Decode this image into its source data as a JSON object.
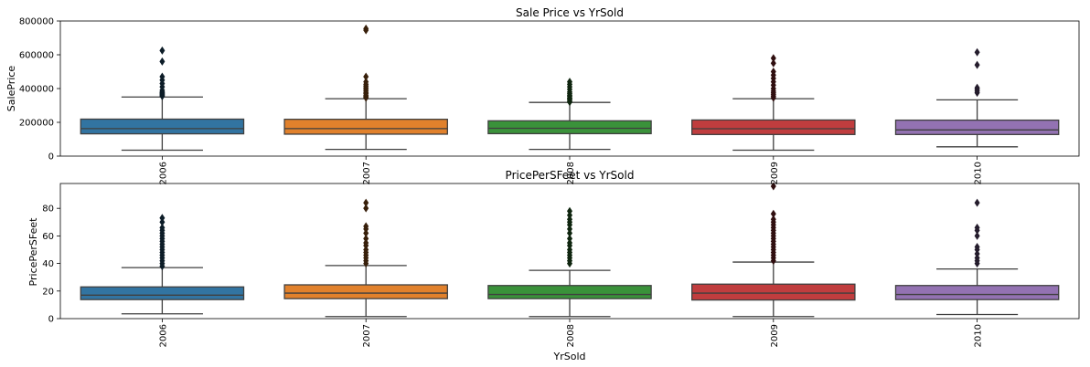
{
  "chart_data": [
    {
      "type": "box",
      "title": "Sale Price vs YrSold",
      "xlabel": "",
      "ylabel": "SalePrice",
      "categories": [
        "2006",
        "2007",
        "2008",
        "2009",
        "2010"
      ],
      "ylim": [
        0,
        800000
      ],
      "yticks": [
        0,
        200000,
        400000,
        600000,
        800000
      ],
      "ytick_labels": [
        "0",
        "200000",
        "400000",
        "600000",
        "800000"
      ],
      "boxes": [
        {
          "category": "2006",
          "whisker_low": 35000,
          "q1": 132000,
          "median": 163000,
          "q3": 219000,
          "whisker_high": 350000,
          "outliers": [
            355000,
            360000,
            365000,
            370000,
            375000,
            380000,
            390000,
            410000,
            430000,
            450000,
            470000,
            560000,
            625000
          ]
        },
        {
          "category": "2007",
          "whisker_low": 40000,
          "q1": 130000,
          "median": 163000,
          "q3": 218000,
          "whisker_high": 340000,
          "outliers": [
            345000,
            350000,
            355000,
            360000,
            370000,
            375000,
            385000,
            395000,
            405000,
            415000,
            425000,
            440000,
            470000,
            745000,
            755000
          ]
        },
        {
          "category": "2008",
          "whisker_low": 40000,
          "q1": 133000,
          "median": 165000,
          "q3": 209000,
          "whisker_high": 318000,
          "outliers": [
            320000,
            325000,
            335000,
            340000,
            345000,
            355000,
            360000,
            370000,
            380000,
            395000,
            410000,
            425000,
            440000
          ]
        },
        {
          "category": "2009",
          "whisker_low": 35000,
          "q1": 128000,
          "median": 162000,
          "q3": 214000,
          "whisker_high": 340000,
          "outliers": [
            345000,
            355000,
            365000,
            375000,
            385000,
            400000,
            420000,
            440000,
            460000,
            480000,
            500000,
            550000,
            580000
          ]
        },
        {
          "category": "2010",
          "whisker_low": 55000,
          "q1": 128000,
          "median": 155000,
          "q3": 213000,
          "whisker_high": 333000,
          "outliers": [
            375000,
            385000,
            395000,
            405000,
            540000,
            615000
          ]
        }
      ],
      "colors": [
        "#3274a1",
        "#e1812c",
        "#3a923a",
        "#c03d3e",
        "#9372b2"
      ]
    },
    {
      "type": "box",
      "title": "PricePerSFeet vs YrSold",
      "xlabel": "YrSold",
      "ylabel": "PricePerSFeet",
      "categories": [
        "2006",
        "2007",
        "2008",
        "2009",
        "2010"
      ],
      "ylim": [
        0,
        98
      ],
      "yticks": [
        0,
        20,
        40,
        60,
        80
      ],
      "ytick_labels": [
        "0",
        "20",
        "40",
        "60",
        "80"
      ],
      "boxes": [
        {
          "category": "2006",
          "whisker_low": 3.5,
          "q1": 13.8,
          "median": 17,
          "q3": 23,
          "whisker_high": 37,
          "outliers": [
            38,
            40,
            42,
            44,
            46,
            48,
            50,
            52,
            54,
            56,
            58,
            60,
            62,
            64,
            66,
            70,
            73
          ]
        },
        {
          "category": "2007",
          "whisker_low": 1.5,
          "q1": 14.5,
          "median": 18.5,
          "q3": 24.5,
          "whisker_high": 38.5,
          "outliers": [
            40,
            42,
            44,
            46,
            48,
            50,
            53,
            55,
            58,
            62,
            65,
            67,
            80,
            84
          ]
        },
        {
          "category": "2008",
          "whisker_low": 1.5,
          "q1": 14.5,
          "median": 17.5,
          "q3": 24,
          "whisker_high": 35,
          "outliers": [
            40,
            42,
            44,
            46,
            48,
            50,
            53,
            55,
            58,
            62,
            65,
            68,
            70,
            72,
            75,
            78
          ]
        },
        {
          "category": "2009",
          "whisker_low": 1.5,
          "q1": 13.5,
          "median": 18.5,
          "q3": 25,
          "whisker_high": 41,
          "outliers": [
            42,
            44,
            46,
            48,
            50,
            52,
            54,
            56,
            58,
            60,
            62,
            64,
            66,
            68,
            70,
            72,
            76,
            96
          ]
        },
        {
          "category": "2010",
          "whisker_low": 3,
          "q1": 13.8,
          "median": 17.5,
          "q3": 24,
          "whisker_high": 36,
          "outliers": [
            40,
            42,
            44,
            47,
            50,
            52,
            60,
            64,
            66,
            84
          ]
        }
      ],
      "colors": [
        "#3274a1",
        "#e1812c",
        "#3a923a",
        "#c03d3e",
        "#9372b2"
      ]
    }
  ]
}
